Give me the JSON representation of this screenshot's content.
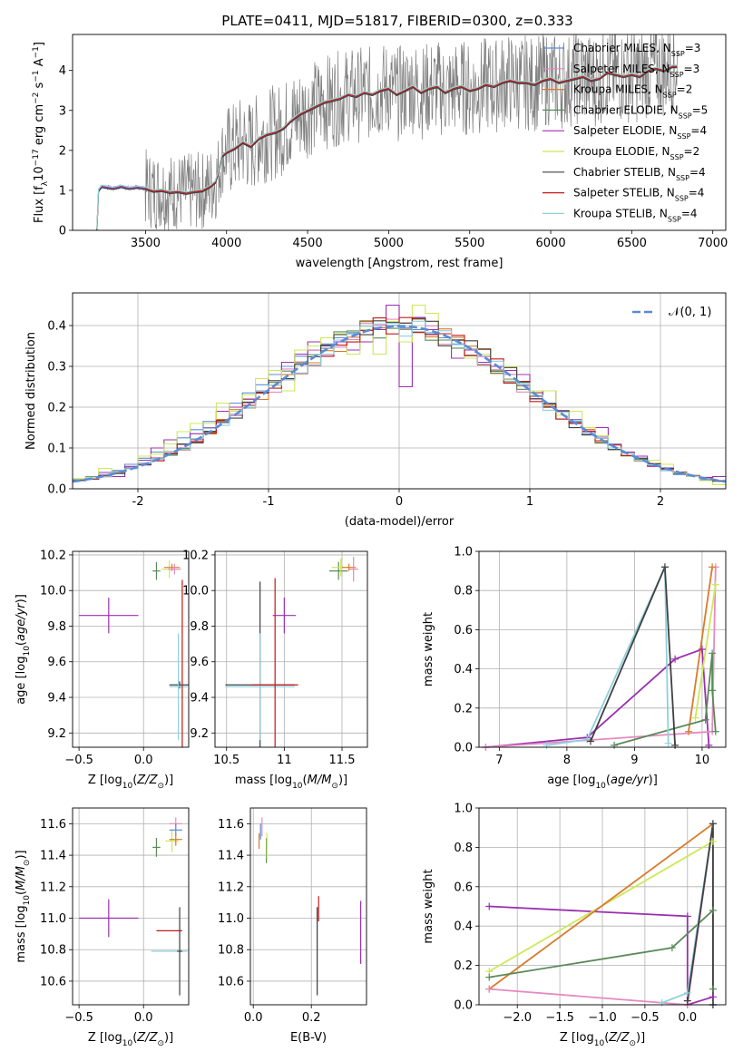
{
  "figure_title": "PLATE=0411, MJD=51817, FIBERID=0300, z=0.333",
  "series": [
    {
      "name": "Chabrier MILES, N",
      "sub": "SSP",
      "suffix": "=3",
      "color": "#5b8bd6"
    },
    {
      "name": "Salpeter MILES, N",
      "sub": "SSP",
      "suffix": "=3",
      "color": "#e68ac0"
    },
    {
      "name": "Kroupa MILES, N",
      "sub": "SSP",
      "suffix": "=2",
      "color": "#d97b2c"
    },
    {
      "name": "Chabrier ELODIE, N",
      "sub": "SSP",
      "suffix": "=5",
      "color": "#5a8a5a"
    },
    {
      "name": "Salpeter ELODIE, N",
      "sub": "SSP",
      "suffix": "=4",
      "color": "#9b2fb0"
    },
    {
      "name": "Kroupa ELODIE, N",
      "sub": "SSP",
      "suffix": "=2",
      "color": "#cce858"
    },
    {
      "name": "Chabrier STELIB, N",
      "sub": "SSP",
      "suffix": "=4",
      "color": "#404040"
    },
    {
      "name": "Salpeter STELIB, N",
      "sub": "SSP",
      "suffix": "=4",
      "color": "#c41818"
    },
    {
      "name": "Kroupa STELIB, N",
      "sub": "SSP",
      "suffix": "=4",
      "color": "#8fd0dc"
    }
  ],
  "chart_data": [
    {
      "type": "line",
      "id": "spectrum",
      "xlabel": "wavelength [Angstrom, rest frame]",
      "ylabel": "Flux [fλ10⁻¹⁷ erg cm⁻² s⁻¹ A⁻¹]",
      "xlim": [
        3050,
        7080
      ],
      "ylim": [
        0,
        4.9
      ],
      "xticks": [
        3500,
        4000,
        4500,
        5000,
        5500,
        6000,
        6500,
        7000
      ],
      "yticks": [
        0,
        1,
        2,
        3,
        4
      ],
      "data_color": "#808080",
      "legend": "upper right",
      "model_x": [
        3200,
        3210,
        3230,
        3260,
        3300,
        3350,
        3400,
        3450,
        3500,
        3520,
        3550,
        3600,
        3650,
        3700,
        3750,
        3800,
        3850,
        3900,
        3930,
        3950,
        3970,
        4000,
        4050,
        4100,
        4150,
        4200,
        4250,
        4300,
        4350,
        4400,
        4450,
        4500,
        4550,
        4600,
        4650,
        4700,
        4750,
        4800,
        4850,
        4900,
        4950,
        5000,
        5050,
        5100,
        5150,
        5200,
        5250,
        5300,
        5350,
        5400,
        5450,
        5500,
        5550,
        5600,
        5650,
        5700,
        5750,
        5800,
        5850,
        5900,
        5950,
        6000,
        6050,
        6100,
        6150,
        6200,
        6250,
        6300,
        6350,
        6400,
        6450,
        6500,
        6550,
        6600,
        6650,
        6700,
        6750,
        6780
      ],
      "model_y": [
        0,
        1.0,
        1.1,
        1.08,
        1.05,
        1.1,
        1.05,
        1.08,
        1.05,
        1.02,
        0.98,
        1.0,
        0.95,
        0.97,
        0.93,
        0.97,
        0.99,
        1.1,
        1.2,
        1.45,
        1.85,
        1.95,
        2.05,
        2.2,
        2.1,
        2.3,
        2.4,
        2.45,
        2.55,
        2.75,
        2.9,
        3.0,
        3.1,
        3.2,
        3.25,
        3.3,
        3.4,
        3.35,
        3.45,
        3.4,
        3.5,
        3.55,
        3.4,
        3.5,
        3.6,
        3.45,
        3.55,
        3.6,
        3.45,
        3.55,
        3.6,
        3.5,
        3.55,
        3.65,
        3.6,
        3.7,
        3.75,
        3.7,
        3.7,
        3.65,
        3.75,
        3.8,
        3.7,
        3.75,
        3.8,
        3.85,
        3.75,
        3.8,
        3.95,
        3.9,
        3.85,
        3.9,
        3.85,
        4.0,
        4.05,
        4.0,
        4.1,
        4.1
      ]
    },
    {
      "type": "line",
      "id": "residuals",
      "xlabel": "(data-model)/error",
      "ylabel": "Normed distribution",
      "xlim": [
        -2.5,
        2.5
      ],
      "ylim": [
        0,
        0.48
      ],
      "xticks": [
        -2,
        -1,
        0,
        1,
        2
      ],
      "yticks": [
        0.0,
        0.1,
        0.2,
        0.3,
        0.4
      ],
      "grid": true,
      "legend": "upper right",
      "reference": {
        "label": "𝒩(0, 1)",
        "mean": 0,
        "sigma": 1,
        "color": "#5b8bd6"
      },
      "bin_width": 0.1,
      "histograms": {
        "Chabrier MILES": [
          0.022,
          0.03,
          0.035,
          0.045,
          0.06,
          0.075,
          0.09,
          0.11,
          0.125,
          0.145,
          0.165,
          0.19,
          0.21,
          0.235,
          0.255,
          0.28,
          0.3,
          0.325,
          0.34,
          0.355,
          0.37,
          0.38,
          0.39,
          0.395,
          0.4,
          0.395,
          0.39,
          0.38,
          0.37,
          0.355,
          0.34,
          0.325,
          0.3,
          0.28,
          0.255,
          0.235,
          0.21,
          0.19,
          0.165,
          0.145,
          0.125,
          0.11,
          0.09,
          0.075,
          0.06,
          0.045,
          0.035,
          0.03,
          0.022,
          0.02
        ],
        "Salpeter ELODIE": [
          0.02,
          0.025,
          0.04,
          0.03,
          0.055,
          0.07,
          0.1,
          0.12,
          0.11,
          0.135,
          0.15,
          0.19,
          0.2,
          0.22,
          0.24,
          0.29,
          0.31,
          0.33,
          0.36,
          0.35,
          0.36,
          0.34,
          0.36,
          0.39,
          0.45,
          0.25,
          0.42,
          0.39,
          0.38,
          0.32,
          0.34,
          0.31,
          0.3,
          0.29,
          0.28,
          0.22,
          0.24,
          0.19,
          0.17,
          0.14,
          0.15,
          0.1,
          0.09,
          0.08,
          0.055,
          0.05,
          0.04,
          0.03,
          0.028,
          0.03
        ],
        "Kroupa ELODIE": [
          0.025,
          0.028,
          0.05,
          0.04,
          0.05,
          0.08,
          0.085,
          0.11,
          0.14,
          0.16,
          0.16,
          0.21,
          0.19,
          0.23,
          0.27,
          0.29,
          0.24,
          0.34,
          0.35,
          0.37,
          0.38,
          0.33,
          0.39,
          0.33,
          0.41,
          0.36,
          0.45,
          0.43,
          0.35,
          0.37,
          0.32,
          0.33,
          0.29,
          0.3,
          0.26,
          0.24,
          0.24,
          0.18,
          0.19,
          0.15,
          0.13,
          0.1,
          0.08,
          0.07,
          0.07,
          0.06,
          0.04,
          0.03,
          0.02,
          0.01
        ]
      }
    },
    {
      "type": "scatter",
      "id": "age-vs-Z",
      "xlabel": "Z [log₁₀(Z/Z☉)]",
      "ylabel": "age  [log₁₀(age/yr)]",
      "xlim": [
        -0.55,
        0.35
      ],
      "ylim": [
        9.12,
        10.22
      ],
      "xticks": [
        -0.5,
        0.0
      ],
      "xtick_labels": [
        "−0.5",
        "0.0"
      ],
      "yticks": [
        9.2,
        9.4,
        9.6,
        9.8,
        10.0,
        10.2
      ],
      "grid": true,
      "points": [
        {
          "series": "Salpeter ELODIE",
          "x": -0.27,
          "y": 9.86,
          "xerr": 0.23,
          "yerr": 0.1
        },
        {
          "series": "Chabrier STELIB",
          "x": 0.28,
          "y": 9.47,
          "xerr": 0.08,
          "yerr": 0.02
        },
        {
          "series": "Kroupa STELIB",
          "x": 0.27,
          "y": 9.46,
          "xerr": 0.07,
          "yerr": 0.3
        },
        {
          "series": "Chabrier ELODIE",
          "x": 0.1,
          "y": 10.11,
          "xerr": 0.03,
          "yerr": 0.05
        },
        {
          "series": "Kroupa ELODIE",
          "x": 0.2,
          "y": 10.12,
          "xerr": 0.06,
          "yerr": 0.05
        },
        {
          "series": "Kroupa MILES",
          "x": 0.22,
          "y": 10.13,
          "xerr": 0.06,
          "yerr": 0.02
        },
        {
          "series": "Salpeter MILES",
          "x": 0.24,
          "y": 10.12,
          "xerr": 0.05,
          "yerr": 0.03
        },
        {
          "series": "Salpeter STELIB",
          "x": 0.3,
          "y": 9.5,
          "xerr": 0.0,
          "yerr": 0.56
        }
      ]
    },
    {
      "type": "scatter",
      "id": "age-vs-mass",
      "xlabel": "mass [log₁₀(M/M☉)]",
      "ylabel": "",
      "xlim": [
        10.4,
        11.72
      ],
      "ylim": [
        9.12,
        10.22
      ],
      "xticks": [
        10.5,
        11.0,
        11.5
      ],
      "yticks": [
        9.2,
        9.4,
        9.6,
        9.8,
        10.0,
        10.2
      ],
      "grid": true,
      "points": [
        {
          "series": "Salpeter ELODIE",
          "x": 11.0,
          "y": 9.86,
          "xerr": 0.1,
          "yerr": 0.1
        },
        {
          "series": "Chabrier STELIB",
          "x": 10.79,
          "y": 9.47,
          "xerr": 0.3,
          "yerr": 0.58
        },
        {
          "series": "Kroupa STELIB",
          "x": 10.79,
          "y": 9.46,
          "xerr": 0.3,
          "yerr": 0.3
        },
        {
          "series": "Salpeter STELIB",
          "x": 10.92,
          "y": 9.47,
          "xerr": 0.2,
          "yerr": 0.6
        },
        {
          "series": "Chabrier ELODIE",
          "x": 11.47,
          "y": 10.11,
          "xerr": 0.08,
          "yerr": 0.05
        },
        {
          "series": "Kroupa ELODIE",
          "x": 11.49,
          "y": 10.13,
          "xerr": 0.08,
          "yerr": 0.05
        },
        {
          "series": "Kroupa MILES",
          "x": 11.56,
          "y": 10.13,
          "xerr": 0.06,
          "yerr": 0.02
        },
        {
          "series": "Salpeter MILES",
          "x": 11.6,
          "y": 10.12,
          "xerr": 0.04,
          "yerr": 0.07
        }
      ]
    },
    {
      "type": "line",
      "id": "weight-vs-age",
      "xlabel": "age  [log₁₀(age/yr)]",
      "ylabel": "mass weight",
      "xlim": [
        6.7,
        10.35
      ],
      "ylim": [
        0,
        1.0
      ],
      "xticks": [
        7,
        8,
        9,
        10
      ],
      "yticks": [
        0.0,
        0.2,
        0.4,
        0.6,
        0.8,
        1.0
      ],
      "grid": true,
      "lines": {
        "Salpeter ELODIE": {
          "x": [
            6.8,
            8.3,
            9.6,
            10.0,
            10.1
          ],
          "y": [
            0.0,
            0.05,
            0.45,
            0.5,
            0.01
          ]
        },
        "Salpeter MILES": {
          "x": [
            6.8,
            10.15,
            10.2
          ],
          "y": [
            0.0,
            0.08,
            0.92
          ]
        },
        "Kroupa MILES": {
          "x": [
            9.8,
            10.15
          ],
          "y": [
            0.08,
            0.92
          ]
        },
        "Kroupa ELODIE": {
          "x": [
            9.9,
            10.2
          ],
          "y": [
            0.15,
            0.83
          ]
        },
        "Chabrier ELODIE": {
          "x": [
            8.7,
            10.05,
            10.15,
            10.15,
            10.2
          ],
          "y": [
            0.01,
            0.14,
            0.48,
            0.29,
            0.08
          ]
        },
        "Kroupa STELIB": {
          "x": [
            7.7,
            8.3,
            9.45,
            9.5
          ],
          "y": [
            0.01,
            0.04,
            0.92,
            0.02
          ]
        },
        "Chabrier STELIB": {
          "x": [
            8.35,
            9.45,
            9.6
          ],
          "y": [
            0.03,
            0.92,
            0.01
          ]
        }
      }
    },
    {
      "type": "scatter",
      "id": "mass-vs-Z",
      "xlabel": "Z [log₁₀(Z/Z☉)]",
      "ylabel": "mass [log₁₀(M/M☉)]",
      "xlim": [
        -0.55,
        0.35
      ],
      "ylim": [
        10.45,
        11.7
      ],
      "xticks": [
        -0.5,
        0.0
      ],
      "xtick_labels": [
        "−0.5",
        "0.0"
      ],
      "yticks": [
        10.6,
        10.8,
        11.0,
        11.2,
        11.4,
        11.6
      ],
      "grid": true,
      "points": [
        {
          "series": "Salpeter ELODIE",
          "x": -0.27,
          "y": 11.0,
          "xerr": 0.23,
          "yerr": 0.12
        },
        {
          "series": "Salpeter STELIB",
          "x": 0.2,
          "y": 10.92,
          "xerr": 0.1,
          "yerr": 0.0
        },
        {
          "series": "Kroupa STELIB",
          "x": 0.2,
          "y": 10.79,
          "xerr": 0.14,
          "yerr": 0.0
        },
        {
          "series": "Chabrier STELIB",
          "x": 0.28,
          "y": 10.79,
          "xerr": 0.02,
          "yerr": 0.28
        },
        {
          "series": "Chabrier ELODIE",
          "x": 0.1,
          "y": 11.45,
          "xerr": 0.03,
          "yerr": 0.06
        },
        {
          "series": "Kroupa ELODIE",
          "x": 0.22,
          "y": 11.49,
          "xerr": 0.05,
          "yerr": 0.07
        },
        {
          "series": "Salpeter MILES",
          "x": 0.25,
          "y": 11.6,
          "xerr": 0.05,
          "yerr": 0.04
        },
        {
          "series": "Chabrier MILES",
          "x": 0.25,
          "y": 11.56,
          "xerr": 0.05,
          "yerr": 0.04
        },
        {
          "series": "Kroupa MILES",
          "x": 0.25,
          "y": 11.5,
          "xerr": 0.05,
          "yerr": 0.04
        }
      ]
    },
    {
      "type": "scatter",
      "id": "mass-vs-ebv",
      "xlabel": "E(B-V)",
      "ylabel": "",
      "xlim": [
        -0.01,
        0.39
      ],
      "ylim": [
        10.45,
        11.7
      ],
      "xticks": [
        0.0,
        0.2
      ],
      "yticks": [
        10.6,
        10.8,
        11.0,
        11.2,
        11.4,
        11.6
      ],
      "grid": true,
      "points": [
        {
          "series": "Salpeter MILES",
          "x": 0.03,
          "y": 11.58,
          "xerr": 0.0,
          "yerr": 0.06
        },
        {
          "series": "Chabrier MILES",
          "x": 0.025,
          "y": 11.55,
          "xerr": 0.0,
          "yerr": 0.05
        },
        {
          "series": "Kroupa MILES",
          "x": 0.02,
          "y": 11.49,
          "xerr": 0.0,
          "yerr": 0.05
        },
        {
          "series": "Chabrier ELODIE",
          "x": 0.045,
          "y": 11.43,
          "xerr": 0.0,
          "yerr": 0.08
        },
        {
          "series": "Kroupa ELODIE",
          "x": 0.047,
          "y": 11.46,
          "xerr": 0.0,
          "yerr": 0.08
        },
        {
          "series": "Salpeter STELIB",
          "x": 0.225,
          "y": 11.06,
          "xerr": 0.0,
          "yerr": 0.08
        },
        {
          "series": "Kroupa STELIB",
          "x": 0.22,
          "y": 10.79,
          "xerr": 0.0,
          "yerr": 0.28
        },
        {
          "series": "Chabrier STELIB",
          "x": 0.22,
          "y": 10.79,
          "xerr": 0.0,
          "yerr": 0.28
        },
        {
          "series": "Salpeter ELODIE",
          "x": 0.37,
          "y": 10.91,
          "xerr": 0.0,
          "yerr": 0.2
        }
      ]
    },
    {
      "type": "line",
      "id": "weight-vs-Z",
      "xlabel": "Z [log₁₀(Z/Z☉)]",
      "ylabel": "mass weight",
      "xlim": [
        -2.45,
        0.45
      ],
      "ylim": [
        0,
        1.0
      ],
      "xticks": [
        -2.0,
        -1.5,
        -1.0,
        -0.5,
        0.0
      ],
      "xtick_labels": [
        "−2.0",
        "−1.5",
        "−1.0",
        "−0.5",
        "0.0"
      ],
      "yticks": [
        0.0,
        0.2,
        0.4,
        0.6,
        0.8,
        1.0
      ],
      "grid": true,
      "lines": {
        "Salpeter ELODIE": {
          "x": [
            -2.33,
            0.0,
            0.0,
            0.3
          ],
          "y": [
            0.5,
            0.45,
            0.0,
            0.04
          ]
        },
        "Kroupa ELODIE": {
          "x": [
            -2.33,
            0.3
          ],
          "y": [
            0.17,
            0.83
          ]
        },
        "Kroupa MILES": {
          "x": [
            -2.33,
            0.3
          ],
          "y": [
            0.08,
            0.92
          ]
        },
        "Chabrier ELODIE": {
          "x": [
            -2.33,
            -0.18,
            0.3,
            0.3,
            0.3
          ],
          "y": [
            0.14,
            0.29,
            0.48,
            0.0,
            0.08
          ]
        },
        "Salpeter MILES": {
          "x": [
            -2.33,
            0.0,
            0.3,
            0.3
          ],
          "y": [
            0.08,
            0.0,
            0.92,
            0.0
          ]
        },
        "Kroupa STELIB": {
          "x": [
            -0.3,
            0.0,
            0.3,
            0.3
          ],
          "y": [
            0.01,
            0.06,
            0.92,
            0.0
          ]
        },
        "Chabrier STELIB": {
          "x": [
            0.0,
            0.3,
            0.3
          ],
          "y": [
            0.02,
            0.92,
            0.0
          ]
        }
      }
    }
  ]
}
